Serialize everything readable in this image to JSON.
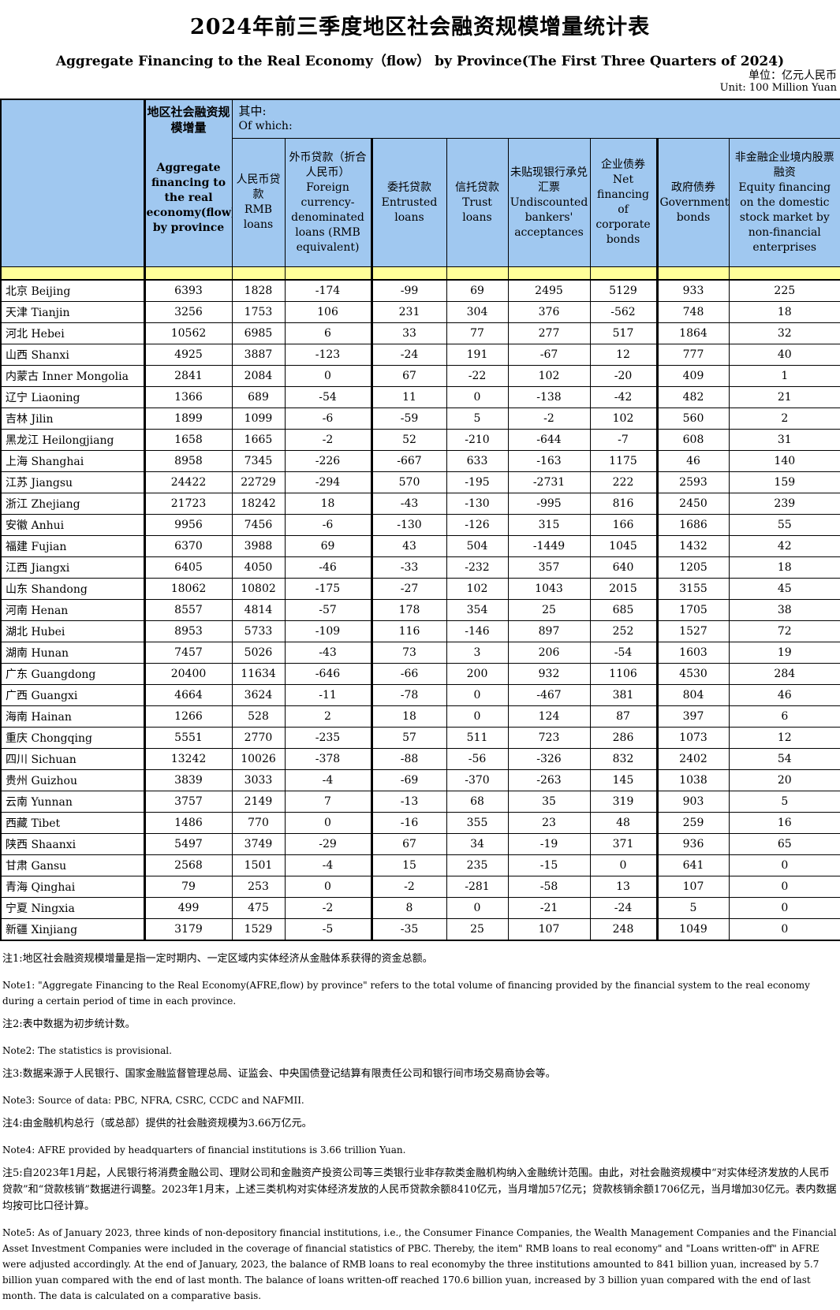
{
  "page": {
    "title_zh": "2024年前三季度地区社会融资规模增量统计表",
    "title_en": "Aggregate Financing to the Real Economy（flow） by Province(The First Three Quarters of 2024)",
    "unit_zh": "单位：亿元人民币",
    "unit_en": "Unit: 100 Million Yuan"
  },
  "colors": {
    "header_blue": "#A0C8F0",
    "band_yellow": "#FFFF99",
    "border_black": "#000000"
  },
  "table": {
    "aggregate_header": {
      "zh": "地区社会融资规模增量",
      "en": "Aggregate financing to the real economy(flow) by province"
    },
    "of_which": {
      "zh": "其中:",
      "en": "Of which:"
    },
    "sub_headers": [
      {
        "zh": "人民币贷款",
        "en": "RMB loans"
      },
      {
        "zh": "外币贷款（折合人民币）",
        "en": "Foreign currency-denominated loans (RMB equivalent)"
      },
      {
        "zh": "委托贷款",
        "en": "Entrusted loans"
      },
      {
        "zh": "信托贷款",
        "en": "Trust loans"
      },
      {
        "zh": "未贴现银行承兑汇票",
        "en": "Undiscounted bankers' acceptances"
      },
      {
        "zh": "企业债券",
        "en": "Net financing of corporate bonds"
      },
      {
        "zh": "政府债券",
        "en": "Government bonds"
      },
      {
        "zh": "非金融企业境内股票融资",
        "en": "Equity financing on the domestic stock market by non-financial enterprises"
      }
    ],
    "rows": [
      {
        "zh": "北京",
        "en": "Beijing",
        "values": [
          6393,
          1828,
          -174,
          -99,
          69,
          2495,
          5129,
          933,
          225
        ]
      },
      {
        "zh": "天津",
        "en": "Tianjin",
        "values": [
          3256,
          1753,
          106,
          231,
          304,
          376,
          -562,
          748,
          18
        ]
      },
      {
        "zh": "河北",
        "en": "Hebei",
        "values": [
          10562,
          6985,
          6,
          33,
          77,
          277,
          517,
          1864,
          32
        ]
      },
      {
        "zh": "山西",
        "en": "Shanxi",
        "values": [
          4925,
          3887,
          -123,
          -24,
          191,
          -67,
          12,
          777,
          40
        ]
      },
      {
        "zh": "内蒙古",
        "en": "Inner Mongolia",
        "values": [
          2841,
          2084,
          0,
          67,
          -22,
          102,
          -20,
          409,
          1
        ]
      },
      {
        "zh": "辽宁",
        "en": "Liaoning",
        "values": [
          1366,
          689,
          -54,
          11,
          0,
          -138,
          -42,
          482,
          21
        ]
      },
      {
        "zh": "吉林",
        "en": "Jilin",
        "values": [
          1899,
          1099,
          -6,
          -59,
          5,
          -2,
          102,
          560,
          2
        ]
      },
      {
        "zh": "黑龙江",
        "en": "Heilongjiang",
        "values": [
          1658,
          1665,
          -2,
          52,
          -210,
          -644,
          -7,
          608,
          31
        ]
      },
      {
        "zh": "上海",
        "en": "Shanghai",
        "values": [
          8958,
          7345,
          -226,
          -667,
          633,
          -163,
          1175,
          46,
          140
        ]
      },
      {
        "zh": "江苏",
        "en": "Jiangsu",
        "values": [
          24422,
          22729,
          -294,
          570,
          -195,
          -2731,
          222,
          2593,
          159
        ]
      },
      {
        "zh": "浙江",
        "en": "Zhejiang",
        "values": [
          21723,
          18242,
          18,
          -43,
          -130,
          -995,
          816,
          2450,
          239
        ]
      },
      {
        "zh": "安徽",
        "en": "Anhui",
        "values": [
          9956,
          7456,
          -6,
          -130,
          -126,
          315,
          166,
          1686,
          55
        ]
      },
      {
        "zh": "福建",
        "en": "Fujian",
        "values": [
          6370,
          3988,
          69,
          43,
          504,
          -1449,
          1045,
          1432,
          42
        ]
      },
      {
        "zh": "江西",
        "en": "Jiangxi",
        "values": [
          6405,
          4050,
          -46,
          -33,
          -232,
          357,
          640,
          1205,
          18
        ]
      },
      {
        "zh": "山东",
        "en": "Shandong",
        "values": [
          18062,
          10802,
          -175,
          -27,
          102,
          1043,
          2015,
          3155,
          45
        ]
      },
      {
        "zh": "河南",
        "en": "Henan",
        "values": [
          8557,
          4814,
          -57,
          178,
          354,
          25,
          685,
          1705,
          38
        ]
      },
      {
        "zh": "湖北",
        "en": "Hubei",
        "values": [
          8953,
          5733,
          -109,
          116,
          -146,
          897,
          252,
          1527,
          72
        ]
      },
      {
        "zh": "湖南",
        "en": "Hunan",
        "values": [
          7457,
          5026,
          -43,
          73,
          3,
          206,
          -54,
          1603,
          19
        ]
      },
      {
        "zh": "广东",
        "en": "Guangdong",
        "values": [
          20400,
          11634,
          -646,
          -66,
          200,
          932,
          1106,
          4530,
          284
        ]
      },
      {
        "zh": "广西",
        "en": "Guangxi",
        "values": [
          4664,
          3624,
          -11,
          -78,
          0,
          -467,
          381,
          804,
          46
        ]
      },
      {
        "zh": "海南",
        "en": "Hainan",
        "values": [
          1266,
          528,
          2,
          18,
          0,
          124,
          87,
          397,
          6
        ]
      },
      {
        "zh": "重庆",
        "en": "Chongqing",
        "values": [
          5551,
          2770,
          -235,
          57,
          511,
          723,
          286,
          1073,
          12
        ]
      },
      {
        "zh": "四川",
        "en": "Sichuan",
        "values": [
          13242,
          10026,
          -378,
          -88,
          -56,
          -326,
          832,
          2402,
          54
        ]
      },
      {
        "zh": "贵州",
        "en": "Guizhou",
        "values": [
          3839,
          3033,
          -4,
          -69,
          -370,
          -263,
          145,
          1038,
          20
        ]
      },
      {
        "zh": "云南",
        "en": "Yunnan",
        "values": [
          3757,
          2149,
          7,
          -13,
          68,
          35,
          319,
          903,
          5
        ]
      },
      {
        "zh": "西藏",
        "en": "Tibet",
        "values": [
          1486,
          770,
          0,
          -16,
          355,
          23,
          48,
          259,
          16
        ]
      },
      {
        "zh": "陕西",
        "en": "Shaanxi",
        "values": [
          5497,
          3749,
          -29,
          67,
          34,
          -19,
          371,
          936,
          65
        ]
      },
      {
        "zh": "甘肃",
        "en": "Gansu",
        "values": [
          2568,
          1501,
          -4,
          15,
          235,
          -15,
          0,
          641,
          0
        ]
      },
      {
        "zh": "青海",
        "en": "Qinghai",
        "values": [
          79,
          253,
          0,
          -2,
          -281,
          -58,
          13,
          107,
          0
        ]
      },
      {
        "zh": "宁夏",
        "en": "Ningxia",
        "values": [
          499,
          475,
          -2,
          8,
          0,
          -21,
          -24,
          5,
          0
        ]
      },
      {
        "zh": "新疆",
        "en": "Xinjiang",
        "values": [
          3179,
          1529,
          -5,
          -35,
          25,
          107,
          248,
          1049,
          0
        ]
      }
    ]
  },
  "notes": [
    {
      "zh": "注1:地区社会融资规模增量是指一定时期内、一定区域内实体经济从金融体系获得的资金总额。",
      "en": "Note1: \"Aggregate Financing to the Real Economy(AFRE,flow) by province\" refers to the total volume of financing provided by the financial system to the real economy during a certain period of time in each province."
    },
    {
      "zh": "注2:表中数据为初步统计数。",
      "en": "Note2: The statistics is provisional."
    },
    {
      "zh": "注3:数据来源于人民银行、国家金融监督管理总局、证监会、中央国债登记结算有限责任公司和银行间市场交易商协会等。",
      "en": "Note3: Source of data: PBC, NFRA, CSRC, CCDC and NAFMII."
    },
    {
      "zh": "注4:由金融机构总行（或总部）提供的社会融资规模为3.66万亿元。",
      "en": "Note4: AFRE provided by headquarters of financial institutions is 3.66 trillion Yuan."
    },
    {
      "zh": "注5:自2023年1月起，人民银行将消费金融公司、理财公司和金融资产投资公司等三类银行业非存款类金融机构纳入金融统计范围。由此，对社会融资规模中“对实体经济发放的人民币贷款”和“贷款核销”数据进行调整。2023年1月末，上述三类机构对实体经济发放的人民币贷款余额8410亿元，当月增加57亿元；贷款核销余额1706亿元，当月增加30亿元。表内数据均按可比口径计算。",
      "en": "Note5: As of January 2023, three kinds of non-depository financial institutions, i.e., the Consumer Finance Companies, the Wealth Management Companies and the Financial Asset Investment Companies were included in the coverage of financial statistics of PBC. Thereby, the item\" RMB loans to real economy\" and \"Loans written-off\" in AFRE were adjusted accordingly. At the end of January, 2023, the balance of RMB loans to real economyby the three institutions amounted to 841 billion yuan, increased by 5.7 billion yuan compared with the end of last month. The balance of loans written-off reached 170.6 billion yuan, increased by 3 billion yuan compared with the end of last month. The data is calculated on a comparative basis."
    }
  ]
}
